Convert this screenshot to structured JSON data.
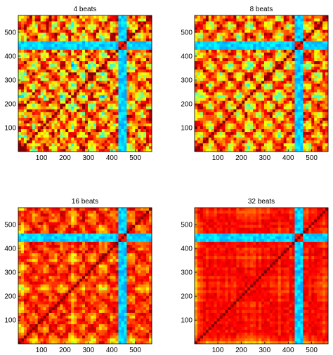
{
  "figure": {
    "layout": "2x2 grid of self-similarity matrices",
    "colormap": "jet"
  },
  "chart_data": [
    {
      "type": "heatmap",
      "title": "4 beats",
      "xlim": [
        1,
        570
      ],
      "ylim": [
        1,
        570
      ],
      "xticks": [
        100,
        200,
        300,
        400,
        500
      ],
      "yticks": [
        100,
        200,
        300,
        400,
        500
      ],
      "diagonal": "high similarity along main diagonal",
      "low_similarity_band": [
        430,
        460
      ],
      "smoothness": 0.15
    },
    {
      "type": "heatmap",
      "title": "8 beats",
      "xlim": [
        1,
        570
      ],
      "ylim": [
        1,
        570
      ],
      "xticks": [
        100,
        200,
        300,
        400,
        500
      ],
      "yticks": [
        100,
        200,
        300,
        400,
        500
      ],
      "diagonal": "high similarity along main diagonal",
      "low_similarity_band": [
        430,
        460
      ],
      "smoothness": 0.35
    },
    {
      "type": "heatmap",
      "title": "16 beats",
      "xlim": [
        1,
        570
      ],
      "ylim": [
        1,
        570
      ],
      "xticks": [
        100,
        200,
        300,
        400,
        500
      ],
      "yticks": [
        100,
        200,
        300,
        400,
        500
      ],
      "diagonal": "high similarity along main diagonal",
      "low_similarity_band": [
        430,
        460
      ],
      "smoothness": 0.6
    },
    {
      "type": "heatmap",
      "title": "32 beats",
      "xlim": [
        1,
        570
      ],
      "ylim": [
        1,
        570
      ],
      "xticks": [
        100,
        200,
        300,
        400,
        500
      ],
      "yticks": [
        100,
        200,
        300,
        400,
        500
      ],
      "diagonal": "high similarity along main diagonal",
      "low_similarity_band": [
        430,
        460
      ],
      "smoothness": 0.85
    }
  ]
}
